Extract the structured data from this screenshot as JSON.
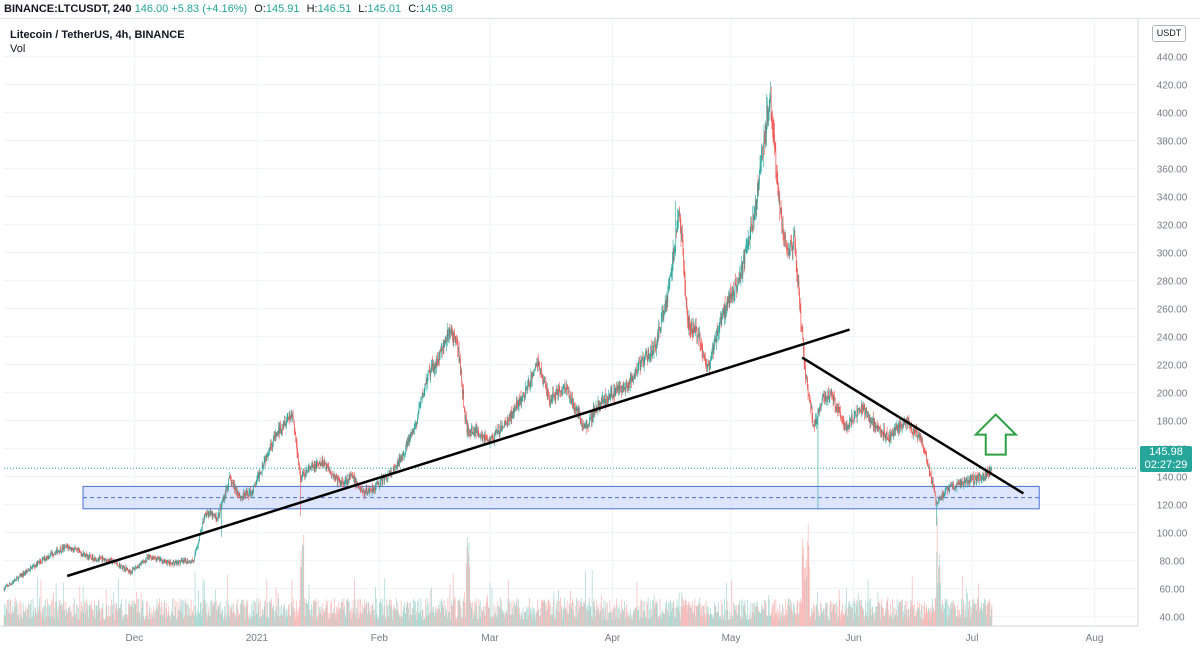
{
  "header": {
    "symbol": "BINANCE:LTCUSDT, 240",
    "last": "146.00",
    "change": "+5.83 (+4.16%)",
    "open_label": "O:",
    "open": "145.91",
    "high_label": "H:",
    "high": "146.51",
    "low_label": "L:",
    "low": "145.01",
    "close_label": "C:",
    "close": "145.98"
  },
  "legend": {
    "title": "Litecoin / TetherUS, 4h, BINANCE",
    "volume_label": "Vol"
  },
  "currency_label": "USDT",
  "price_label": {
    "price": "145.98",
    "countdown": "02:27:29"
  },
  "colors": {
    "up": "#26a69a",
    "down": "#ef5350",
    "up_vol": "#a5d6d0",
    "down_vol": "#f7b7b5",
    "zone_fill": "#cfdcfb",
    "zone_border": "#4a70d9",
    "trend": "#000000",
    "arrow": "#2ea043"
  },
  "annotations": {
    "support_zone": {
      "low": 117,
      "high": 133,
      "mid": 125,
      "start": "2020-11-18",
      "end": "2021-07-18"
    },
    "rising_trendline": [
      {
        "date": "2020-11-14",
        "price": 69
      },
      {
        "date": "2021-05-31",
        "price": 245
      }
    ],
    "falling_trendline": [
      {
        "date": "2021-05-19",
        "price": 225
      },
      {
        "date": "2021-07-14",
        "price": 128
      }
    ],
    "arrow": {
      "direction": "up",
      "date": "2021-07-07",
      "price": 170
    },
    "last_price_line": 145.98
  },
  "chart_data": {
    "type": "candlestick",
    "title": "Litecoin / TetherUS, 4h, BINANCE",
    "ylim": [
      40,
      440
    ],
    "yticks": [
      40,
      60,
      80,
      100,
      120,
      140,
      160,
      180,
      200,
      220,
      240,
      260,
      280,
      300,
      320,
      340,
      360,
      380,
      400,
      420,
      440
    ],
    "xlim": [
      "2020-10-29",
      "2021-08-12"
    ],
    "xticks": [
      {
        "date": "2020-12-01",
        "label": "Dec"
      },
      {
        "date": "2021-01-01",
        "label": "2021"
      },
      {
        "date": "2021-02-01",
        "label": "Feb"
      },
      {
        "date": "2021-03-01",
        "label": "Mar"
      },
      {
        "date": "2021-04-01",
        "label": "Apr"
      },
      {
        "date": "2021-05-01",
        "label": "May"
      },
      {
        "date": "2021-06-01",
        "label": "Jun"
      },
      {
        "date": "2021-07-01",
        "label": "Jul"
      },
      {
        "date": "2021-08-01",
        "label": "Aug"
      }
    ],
    "grid": true,
    "price_path": [
      [
        "2020-10-29",
        60
      ],
      [
        "2020-11-05",
        75
      ],
      [
        "2020-11-10",
        85
      ],
      [
        "2020-11-14",
        90
      ],
      [
        "2020-11-20",
        82
      ],
      [
        "2020-11-25",
        80
      ],
      [
        "2020-11-30",
        72
      ],
      [
        "2020-12-05",
        83
      ],
      [
        "2020-12-10",
        78
      ],
      [
        "2020-12-16",
        80
      ],
      [
        "2020-12-19",
        115
      ],
      [
        "2020-12-22",
        110
      ],
      [
        "2020-12-25",
        138
      ],
      [
        "2020-12-28",
        125
      ],
      [
        "2020-12-31",
        130
      ],
      [
        "2021-01-04",
        160
      ],
      [
        "2021-01-08",
        180
      ],
      [
        "2021-01-10",
        185
      ],
      [
        "2021-01-12",
        140
      ],
      [
        "2021-01-14",
        145
      ],
      [
        "2021-01-18",
        150
      ],
      [
        "2021-01-22",
        135
      ],
      [
        "2021-01-25",
        140
      ],
      [
        "2021-01-28",
        128
      ],
      [
        "2021-01-31",
        133
      ],
      [
        "2021-02-05",
        145
      ],
      [
        "2021-02-10",
        175
      ],
      [
        "2021-02-13",
        210
      ],
      [
        "2021-02-16",
        225
      ],
      [
        "2021-02-19",
        245
      ],
      [
        "2021-02-21",
        230
      ],
      [
        "2021-02-23",
        175
      ],
      [
        "2021-02-27",
        170
      ],
      [
        "2021-03-01",
        165
      ],
      [
        "2021-03-05",
        178
      ],
      [
        "2021-03-10",
        200
      ],
      [
        "2021-03-13",
        222
      ],
      [
        "2021-03-16",
        195
      ],
      [
        "2021-03-20",
        205
      ],
      [
        "2021-03-25",
        175
      ],
      [
        "2021-03-28",
        190
      ],
      [
        "2021-04-01",
        200
      ],
      [
        "2021-04-05",
        205
      ],
      [
        "2021-04-08",
        220
      ],
      [
        "2021-04-12",
        235
      ],
      [
        "2021-04-15",
        270
      ],
      [
        "2021-04-18",
        330
      ],
      [
        "2021-04-20",
        250
      ],
      [
        "2021-04-23",
        240
      ],
      [
        "2021-04-25",
        215
      ],
      [
        "2021-04-28",
        250
      ],
      [
        "2021-05-01",
        270
      ],
      [
        "2021-05-04",
        290
      ],
      [
        "2021-05-07",
        330
      ],
      [
        "2021-05-10",
        395
      ],
      [
        "2021-05-11",
        405
      ],
      [
        "2021-05-13",
        340
      ],
      [
        "2021-05-15",
        300
      ],
      [
        "2021-05-17",
        310
      ],
      [
        "2021-05-19",
        240
      ],
      [
        "2021-05-20",
        210
      ],
      [
        "2021-05-22",
        175
      ],
      [
        "2021-05-24",
        195
      ],
      [
        "2021-05-26",
        200
      ],
      [
        "2021-05-30",
        175
      ],
      [
        "2021-06-03",
        190
      ],
      [
        "2021-06-06",
        178
      ],
      [
        "2021-06-10",
        168
      ],
      [
        "2021-06-14",
        180
      ],
      [
        "2021-06-18",
        168
      ],
      [
        "2021-06-21",
        135
      ],
      [
        "2021-06-22",
        120
      ],
      [
        "2021-06-25",
        132
      ],
      [
        "2021-06-28",
        135
      ],
      [
        "2021-07-01",
        138
      ],
      [
        "2021-07-04",
        140
      ],
      [
        "2021-07-06",
        146
      ]
    ],
    "extremes": [
      [
        "2021-05-10",
        413
      ],
      [
        "2021-04-17",
        337
      ],
      [
        "2021-02-19",
        245
      ],
      [
        "2021-01-10",
        185
      ],
      [
        "2021-05-23",
        117
      ],
      [
        "2021-06-22",
        105
      ],
      [
        "2021-01-12",
        112
      ],
      [
        "2020-12-23",
        97
      ]
    ],
    "volume_spikes": [
      "2021-05-19",
      "2021-05-20",
      "2021-06-22",
      "2021-01-12",
      "2021-02-23"
    ]
  }
}
